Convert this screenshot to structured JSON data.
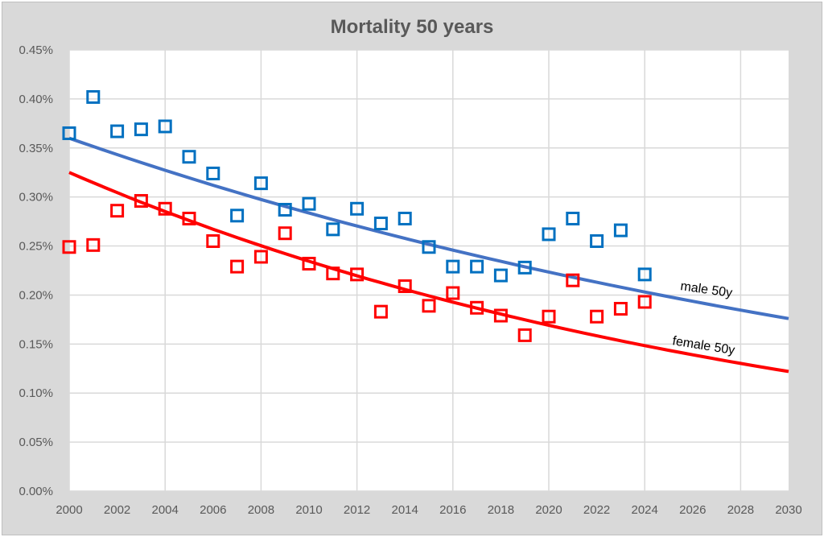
{
  "chart_data": {
    "type": "scatter",
    "title": "Mortality 50 years",
    "xlabel": "",
    "ylabel": "",
    "xlim": [
      2000,
      2030
    ],
    "ylim": [
      0,
      0.45
    ],
    "x_ticks": [
      "2000",
      "2002",
      "2004",
      "2006",
      "2008",
      "2010",
      "2012",
      "2014",
      "2016",
      "2018",
      "2020",
      "2022",
      "2024",
      "2026",
      "2028",
      "2030"
    ],
    "y_ticks": [
      "0.00%",
      "0.05%",
      "0.10%",
      "0.15%",
      "0.20%",
      "0.25%",
      "0.30%",
      "0.35%",
      "0.40%",
      "0.45%"
    ],
    "grid": true,
    "legend": "none",
    "x": [
      2000,
      2001,
      2002,
      2003,
      2004,
      2005,
      2006,
      2007,
      2008,
      2009,
      2010,
      2011,
      2012,
      2013,
      2014,
      2015,
      2016,
      2017,
      2018,
      2019,
      2020,
      2021,
      2022,
      2023,
      2024
    ],
    "series": [
      {
        "color": "#0070c0",
        "marker": "hollow-square",
        "values": [
          0.365,
          0.402,
          0.367,
          0.369,
          0.372,
          0.341,
          0.324,
          0.281,
          0.314,
          0.287,
          0.293,
          0.267,
          0.288,
          0.273,
          0.278,
          0.249,
          0.229,
          0.229,
          0.22,
          0.228,
          0.262,
          0.278,
          0.255,
          0.266,
          0.221
        ]
      },
      {
        "color": "#ff0000",
        "marker": "hollow-square",
        "values": [
          0.249,
          0.251,
          0.286,
          0.296,
          0.288,
          0.278,
          0.255,
          0.229,
          0.239,
          0.263,
          0.232,
          0.222,
          0.221,
          0.183,
          0.209,
          0.189,
          0.202,
          0.187,
          0.179,
          0.159,
          0.178,
          0.215,
          0.178,
          0.186,
          0.193
        ]
      }
    ],
    "trendlines": [
      {
        "name": "male 50y",
        "color": "#4472c4",
        "type": "exponential",
        "x": [
          2000,
          2030
        ],
        "y": [
          0.36,
          0.176
        ]
      },
      {
        "name": "female 50y",
        "color": "#ff0000",
        "type": "exponential",
        "x": [
          2000,
          2030
        ],
        "y": [
          0.325,
          0.122
        ]
      }
    ]
  }
}
